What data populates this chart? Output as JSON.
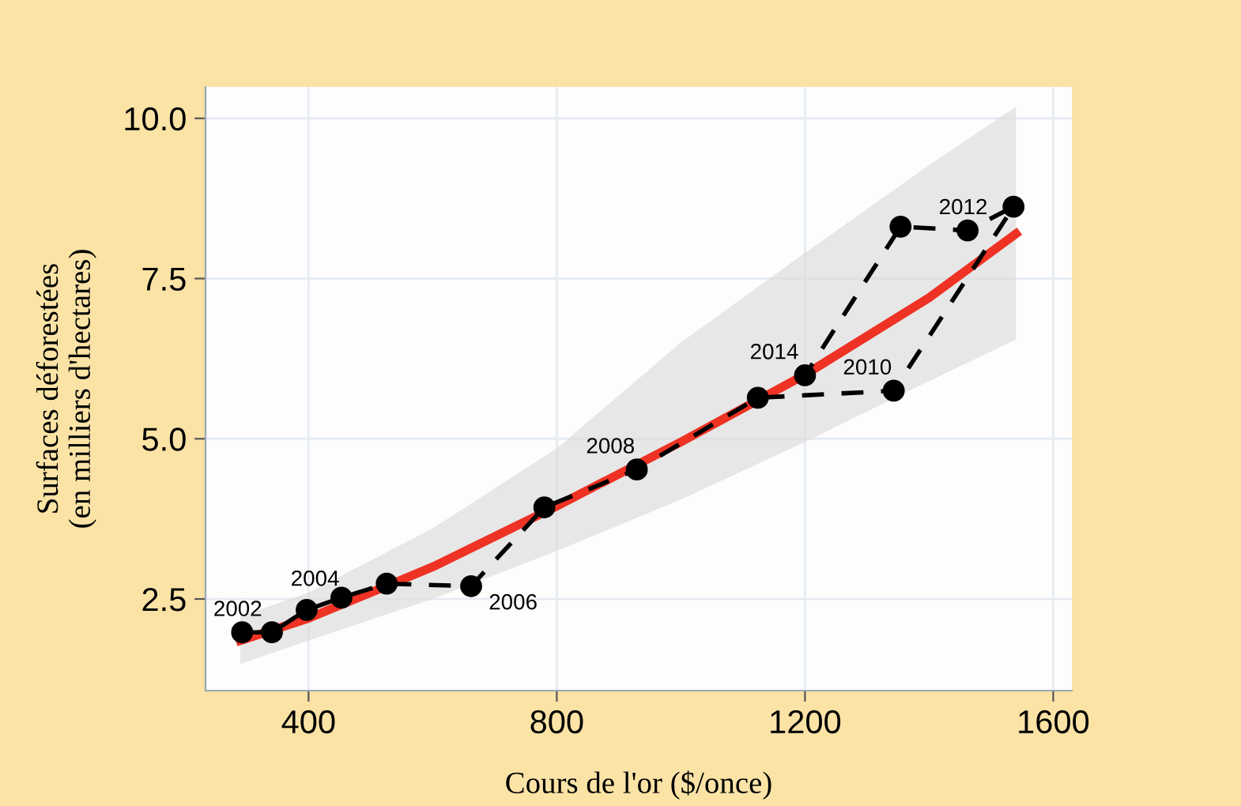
{
  "chart_data": {
    "type": "line",
    "xlabel": "Cours de l'or ($/once)",
    "ylabel": "Surfaces déforestées\n(en milliers d'hectares)",
    "xlim": [
      234,
      1630
    ],
    "ylim": [
      1.07,
      10.49
    ],
    "xticks": [
      400,
      800,
      1200,
      1600
    ],
    "yticks": [
      2.5,
      {
        "value": 5,
        "label": "5.0"
      },
      7.5,
      {
        "value": 10,
        "label": "10.0"
      }
    ],
    "grid": true,
    "series": [
      {
        "color": "#ee3224",
        "marker": "none",
        "line_style": "solid",
        "x": [
          290,
          400,
          600,
          800,
          1000,
          1200,
          1400,
          1540
        ],
        "values": [
          1.85,
          2.2,
          3.0,
          3.95,
          4.95,
          6.0,
          7.2,
          8.2
        ],
        "lower": [
          1.49,
          1.85,
          2.5,
          3.25,
          4.05,
          4.95,
          5.9,
          6.55
        ],
        "upper": [
          2.23,
          2.6,
          3.6,
          4.85,
          6.5,
          7.9,
          9.27,
          10.18
        ]
      },
      {
        "color": "#000000",
        "marker": "circle",
        "line_style": "dashed",
        "x": [
          293,
          341,
          397,
          453,
          526,
          662,
          780,
          929,
          1124,
          1343,
          1536,
          1462,
          1354,
          1200
        ],
        "values": [
          1.98,
          1.98,
          2.33,
          2.52,
          2.74,
          2.7,
          3.93,
          4.52,
          5.64,
          5.75,
          8.62,
          8.25,
          8.31,
          5.99
        ]
      }
    ],
    "annotations": [
      {
        "text": "2002",
        "x": 293,
        "y": 1.98
      },
      {
        "text": "2004",
        "x": 453,
        "y": 2.52
      },
      {
        "text": "2006",
        "x": 662,
        "y": 2.7
      },
      {
        "text": "2008",
        "x": 929,
        "y": 4.52
      },
      {
        "text": "2010",
        "x": 1343,
        "y": 5.75
      },
      {
        "text": "2012",
        "x": 1462,
        "y": 8.25
      },
      {
        "text": "2014",
        "x": 1200,
        "y": 5.99
      }
    ]
  }
}
